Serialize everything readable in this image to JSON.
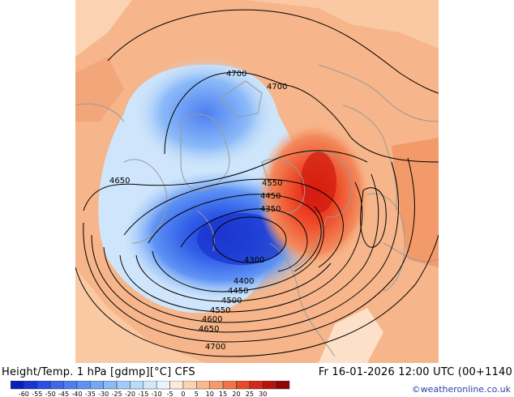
{
  "header": {
    "left_title": "Height/Temp. 1 hPa [gdmp][°C] CFS",
    "right_title": "Fr 16-01-2026 12:00 UTC (00+1140"
  },
  "credit": "©weatheronline.co.uk",
  "contour_labels": [
    "4700",
    "4700",
    "4650",
    "4550",
    "4450",
    "4350",
    "4300",
    "4400",
    "4450",
    "4500",
    "4550",
    "4600",
    "4650",
    "4700"
  ],
  "colorbar": {
    "tick_labels": [
      "-60",
      "-55",
      "-50",
      "-45",
      "-40",
      "-35",
      "-30",
      "-25",
      "-20",
      "-15",
      "-10",
      "-5",
      "0",
      "5",
      "10",
      "15",
      "20",
      "25",
      "30"
    ],
    "colors": [
      "#0b1fb8",
      "#1735d6",
      "#2a4fe6",
      "#3d68ee",
      "#4d7ff2",
      "#5e93f4",
      "#74a7f6",
      "#8bbaf8",
      "#a2cbf9",
      "#badbfa",
      "#d2e8fb",
      "#ebf4fc",
      "#fde9d8",
      "#fbd3b3",
      "#f8b98d",
      "#f59a68",
      "#ef7446",
      "#e84a2a",
      "#d62617",
      "#b8120c",
      "#8f0707"
    ]
  }
}
